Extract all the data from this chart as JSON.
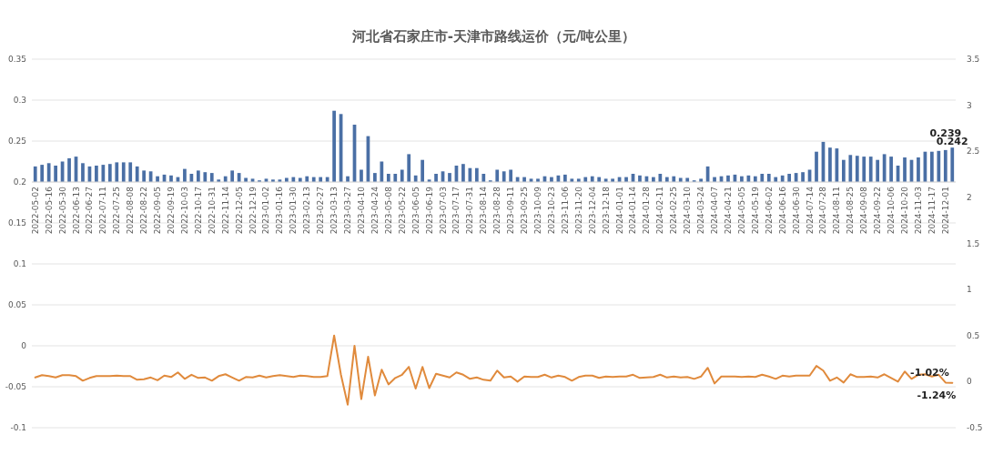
{
  "chart_data": {
    "type": "bar",
    "title": "河北省石家庄市-天津市路线运价（元/吨公里）",
    "categories": [
      "2022-05-02",
      null,
      "2022-05-16",
      null,
      "2022-05-30",
      null,
      "2022-06-13",
      null,
      "2022-06-27",
      null,
      "2022-07-11",
      null,
      "2022-07-25",
      null,
      "2022-08-08",
      null,
      "2022-08-22",
      null,
      "2022-09-05",
      null,
      "2022-09-19",
      null,
      "2022-10-03",
      null,
      "2022-10-17",
      null,
      "2022-10-31",
      null,
      "2022-11-14",
      null,
      "2022-12-05",
      null,
      "2022-12-19",
      null,
      "2023-01-02",
      null,
      "2023-01-16",
      null,
      "2023-01-30",
      null,
      "2023-02-13",
      null,
      "2023-02-27",
      null,
      "2023-03-13",
      null,
      "2023-03-27",
      null,
      "2023-04-10",
      null,
      "2023-04-24",
      null,
      "2023-05-08",
      null,
      "2023-05-22",
      null,
      "2023-06-05",
      null,
      "2023-06-19",
      null,
      "2023-07-03",
      null,
      "2023-07-17",
      null,
      "2023-07-31",
      null,
      "2023-08-14",
      null,
      "2023-08-28",
      null,
      "2023-09-11",
      null,
      "2023-09-25",
      null,
      "2023-10-09",
      null,
      "2023-10-23",
      null,
      "2023-11-06",
      null,
      "2023-11-20",
      null,
      "2023-12-04",
      null,
      "2023-12-18",
      null,
      "2024-01-01",
      null,
      "2024-01-14",
      null,
      "2024-01-28",
      null,
      "2024-02-11",
      null,
      "2024-02-25",
      null,
      "2024-03-10",
      null,
      "2024-03-24",
      null,
      "2024-04-07",
      null,
      "2024-04-21",
      null,
      "2024-05-05",
      null,
      "2024-05-19",
      null,
      "2024-06-02",
      null,
      "2024-06-16",
      null,
      "2024-06-30",
      null,
      "2024-07-14",
      null,
      "2024-07-28",
      null,
      "2024-08-11",
      null,
      "2024-08-25",
      null,
      "2024-09-08",
      null,
      "2024-09-22",
      null,
      "2024-10-06",
      null,
      "2024-10-20",
      null,
      "2024-11-03",
      null,
      "2024-11-17",
      null,
      "2024-12-01",
      null
    ],
    "series": [
      {
        "color": "#4a6fa5",
        "base": [
          0.2,
          0.2,
          0.2,
          0.2,
          0.2,
          0.2,
          0.2,
          0.2,
          0.2,
          0.2,
          0.2,
          0.2,
          0.2,
          0.2,
          0.2,
          0.2,
          0.2,
          0.2,
          0.2,
          0.2,
          0.2,
          0.2,
          0.2,
          0.2,
          0.2,
          0.2,
          0.2,
          0.2,
          0.2,
          0.2,
          0.2,
          0.2,
          0.2,
          0.2,
          0.2,
          0.2,
          0.2,
          0.2,
          0.2,
          0.2,
          0.2,
          0.2,
          0.2,
          0.2,
          0.2,
          0.2,
          0.2,
          0.2,
          0.2,
          0.2,
          0.2,
          0.2,
          0.2,
          0.2,
          0.2,
          0.2,
          0.2,
          0.2,
          0.2,
          0.2,
          0.2,
          0.2,
          0.2,
          0.2,
          0.2,
          0.2,
          0.2,
          0.2,
          0.2,
          0.2,
          0.2,
          0.2,
          0.2,
          0.2,
          0.2,
          0.2,
          0.2,
          0.2,
          0.2,
          0.2,
          0.2,
          0.2,
          0.2,
          0.2,
          0.2,
          0.2,
          0.2,
          0.2,
          0.2,
          0.2,
          0.2,
          0.2,
          0.2,
          0.2,
          0.2,
          0.2,
          0.2,
          0.2,
          0.2,
          0.2,
          0.2,
          0.2,
          0.2,
          0.2,
          0.2,
          0.2,
          0.2,
          0.2,
          0.2,
          0.2,
          0.2,
          0.2,
          0.2,
          0.2,
          0.2,
          0.2,
          0.2,
          0.2,
          0.2,
          0.2,
          0.2,
          0.2,
          0.2,
          0.2,
          0.2,
          0.2,
          0.2,
          0.2,
          0.2,
          0.2,
          0.2,
          0.2,
          0.2,
          0.2,
          0.2,
          0.2
        ],
        "values": [
          0.019,
          0.021,
          0.023,
          0.02,
          0.025,
          0.029,
          0.031,
          0.023,
          0.019,
          0.02,
          0.021,
          0.022,
          0.024,
          0.024,
          0.024,
          0.019,
          0.014,
          0.013,
          0.007,
          0.009,
          0.008,
          0.006,
          0.016,
          0.01,
          0.014,
          0.012,
          0.011,
          0.003,
          0.007,
          0.014,
          0.011,
          0.005,
          0.004,
          0.002,
          0.004,
          0.003,
          0.003,
          0.005,
          0.006,
          0.005,
          0.007,
          0.006,
          0.006,
          0.006,
          0.087,
          0.083,
          0.007,
          0.07,
          0.015,
          0.056,
          0.011,
          0.025,
          0.01,
          0.01,
          0.015,
          0.034,
          0.008,
          0.027,
          0.003,
          0.01,
          0.013,
          0.011,
          0.02,
          0.022,
          0.017,
          0.017,
          0.01,
          0.002,
          0.015,
          0.013,
          0.015,
          0.006,
          0.006,
          0.004,
          0.004,
          0.007,
          0.006,
          0.008,
          0.009,
          0.004,
          0.004,
          0.006,
          0.007,
          0.006,
          0.004,
          0.004,
          0.006,
          0.006,
          0.01,
          0.008,
          0.007,
          0.006,
          0.01,
          0.006,
          0.007,
          0.005,
          0.005,
          0.002,
          0.004,
          0.019,
          0.006,
          0.007,
          0.008,
          0.009,
          0.007,
          0.008,
          0.007,
          0.01,
          0.01,
          0.006,
          0.008,
          0.01,
          0.011,
          0.012,
          0.015,
          0.037,
          0.049,
          0.042,
          0.041,
          0.027,
          0.033,
          0.032,
          0.031,
          0.031,
          0.027,
          0.034,
          0.031,
          0.02,
          0.03,
          0.027,
          0.03,
          0.037,
          0.037,
          0.038,
          0.039,
          0.042
        ],
        "value_labels": [
          null,
          null,
          null,
          null,
          null,
          null,
          null,
          null,
          null,
          null,
          null,
          null,
          null,
          null,
          null,
          null,
          null,
          null,
          null,
          null,
          null,
          null,
          null,
          null,
          null,
          null,
          null,
          null,
          null,
          null,
          null,
          null,
          null,
          null,
          null,
          null,
          null,
          null,
          null,
          null,
          null,
          null,
          null,
          null,
          null,
          null,
          null,
          null,
          null,
          null,
          null,
          null,
          null,
          null,
          null,
          null,
          null,
          null,
          null,
          null,
          null,
          null,
          null,
          null,
          null,
          null,
          null,
          null,
          null,
          null,
          null,
          null,
          null,
          null,
          null,
          null,
          null,
          null,
          null,
          null,
          null,
          null,
          null,
          null,
          null,
          null,
          null,
          null,
          null,
          null,
          null,
          null,
          null,
          null,
          null,
          null,
          null,
          null,
          null,
          null,
          null,
          null,
          null,
          null,
          null,
          null,
          null,
          null,
          null,
          null,
          null,
          null,
          null,
          null,
          null,
          null,
          null,
          null,
          null,
          null,
          null,
          null,
          null,
          null,
          null,
          null,
          null,
          null,
          null,
          null,
          null,
          null,
          null,
          null,
          "0.239",
          "0.242"
        ]
      },
      {
        "type": "line",
        "axis": "y2",
        "color": "#e08a3c",
        "values": [
          0.045,
          0.07,
          0.06,
          0.045,
          0.07,
          0.07,
          0.06,
          0.01,
          0.04,
          0.06,
          0.06,
          0.06,
          0.065,
          0.06,
          0.06,
          0.02,
          0.025,
          0.045,
          0.015,
          0.065,
          0.05,
          0.1,
          0.03,
          0.075,
          0.04,
          0.045,
          0.01,
          0.06,
          0.08,
          0.045,
          0.01,
          0.05,
          0.045,
          0.065,
          0.045,
          0.06,
          0.07,
          0.06,
          0.05,
          0.065,
          0.06,
          0.05,
          0.05,
          0.06,
          0.5,
          0.075,
          -0.25,
          0.39,
          -0.19,
          0.27,
          -0.15,
          0.13,
          -0.03,
          0.04,
          0.075,
          0.16,
          -0.075,
          0.16,
          -0.07,
          0.085,
          0.065,
          0.045,
          0.1,
          0.075,
          0.03,
          0.045,
          0.02,
          0.01,
          0.12,
          0.045,
          0.055,
          0.0,
          0.055,
          0.05,
          0.05,
          0.075,
          0.045,
          0.065,
          0.05,
          0.01,
          0.05,
          0.065,
          0.065,
          0.04,
          0.055,
          0.05,
          0.055,
          0.055,
          0.075,
          0.04,
          0.045,
          0.05,
          0.075,
          0.045,
          0.055,
          0.045,
          0.05,
          0.03,
          0.055,
          0.15,
          -0.02,
          0.055,
          0.055,
          0.055,
          0.05,
          0.055,
          0.05,
          0.075,
          0.055,
          0.03,
          0.065,
          0.055,
          0.065,
          0.065,
          0.065,
          0.17,
          0.12,
          0.01,
          0.045,
          -0.01,
          0.08,
          0.05,
          0.05,
          0.055,
          0.045,
          0.08,
          0.04,
          0.0,
          0.11,
          0.03,
          0.075,
          0.08,
          0.055,
          0.075,
          -0.0102,
          -0.0124
        ],
        "value_labels": [
          null,
          null,
          null,
          null,
          null,
          null,
          null,
          null,
          null,
          null,
          null,
          null,
          null,
          null,
          null,
          null,
          null,
          null,
          null,
          null,
          null,
          null,
          null,
          null,
          null,
          null,
          null,
          null,
          null,
          null,
          null,
          null,
          null,
          null,
          null,
          null,
          null,
          null,
          null,
          null,
          null,
          null,
          null,
          null,
          null,
          null,
          null,
          null,
          null,
          null,
          null,
          null,
          null,
          null,
          null,
          null,
          null,
          null,
          null,
          null,
          null,
          null,
          null,
          null,
          null,
          null,
          null,
          null,
          null,
          null,
          null,
          null,
          null,
          null,
          null,
          null,
          null,
          null,
          null,
          null,
          null,
          null,
          null,
          null,
          null,
          null,
          null,
          null,
          null,
          null,
          null,
          null,
          null,
          null,
          null,
          null,
          null,
          null,
          null,
          null,
          null,
          null,
          null,
          null,
          null,
          null,
          null,
          null,
          null,
          null,
          null,
          null,
          null,
          null,
          null,
          null,
          null,
          null,
          null,
          null,
          null,
          null,
          null,
          null,
          null,
          null,
          null,
          null,
          null,
          null,
          null,
          null,
          null,
          null,
          "-1.02%",
          "-1.24%"
        ]
      }
    ],
    "ylim": [
      -0.1,
      0.35
    ],
    "yticks": [
      -0.1,
      -0.05,
      0,
      0.05,
      0.1,
      0.15,
      0.2,
      0.25,
      0.3,
      0.35
    ],
    "y2lim": [
      -0.5,
      3.5
    ],
    "y2ticks": [
      -0.5,
      0,
      0.5,
      1,
      1.5,
      2,
      2.5,
      3,
      3.5
    ],
    "grid": "y"
  }
}
